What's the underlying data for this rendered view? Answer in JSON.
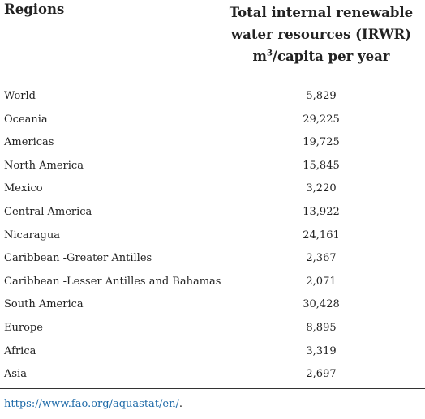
{
  "table": {
    "header": {
      "region_label": "Regions",
      "value_line1": "Total internal renewable",
      "value_line2": "water resources (IRWR)",
      "value_unit_base": "m",
      "value_unit_sup": "3",
      "value_unit_rest": "/capita per year"
    },
    "rows": [
      {
        "region": "World",
        "value": "5,829"
      },
      {
        "region": "Oceania",
        "value": "29,225"
      },
      {
        "region": "Americas",
        "value": "19,725"
      },
      {
        "region": "North America",
        "value": "15,845"
      },
      {
        "region": "Mexico",
        "value": "3,220"
      },
      {
        "region": "Central America",
        "value": "13,922"
      },
      {
        "region": "Nicaragua",
        "value": "24,161"
      },
      {
        "region": "Caribbean -Greater Antilles",
        "value": "2,367"
      },
      {
        "region": "Caribbean -Lesser Antilles and Bahamas",
        "value": "2,071"
      },
      {
        "region": "South America",
        "value": "30,428"
      },
      {
        "region": "Europe",
        "value": "8,895"
      },
      {
        "region": "Africa",
        "value": "3,319"
      },
      {
        "region": "Asia",
        "value": "2,697"
      }
    ]
  },
  "source": {
    "link_text": "https://www.fao.org/aquastat/en/",
    "trailing": "."
  },
  "colors": {
    "link": "#1e6aa8",
    "rule": "#333333"
  }
}
